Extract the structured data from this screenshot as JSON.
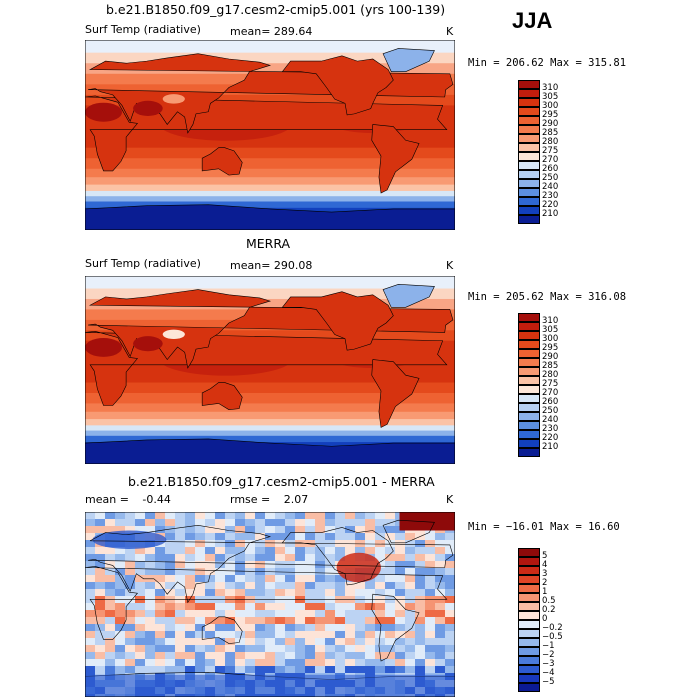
{
  "season": "JJA",
  "panels": [
    {
      "title": "b.e21.B1850.f09_g17.cesm2-cmip5.001 (yrs 100-139)",
      "left_label": "Surf Temp (radiative)",
      "stat_label": "mean=",
      "stat_value": "289.64",
      "units": "K",
      "minmax": "Min = 206.62 Max = 315.81"
    },
    {
      "title": "MERRA",
      "left_label": "Surf Temp (radiative)",
      "stat_label": "mean=",
      "stat_value": "290.08",
      "units": "K",
      "minmax": "Min = 205.62 Max = 316.08"
    },
    {
      "title": "b.e21.B1850.f09_g17.cesm2-cmip5.001 - MERRA",
      "left_label": "mean =",
      "left_value": "-0.44",
      "stat_label": "rmse =",
      "stat_value": "2.07",
      "units": "K",
      "minmax": "Min = −16.01 Max = 16.60"
    }
  ],
  "chart_data": [
    {
      "type": "heatmap",
      "title": "b.e21.B1850.f09_g17.cesm2-cmip5.001 (yrs 100-139)",
      "variable": "Surf Temp (radiative)",
      "units": "K",
      "mean": 289.64,
      "min": 206.62,
      "max": 315.81,
      "colorbar_levels": [
        "310",
        "305",
        "300",
        "295",
        "290",
        "285",
        "280",
        "275",
        "270",
        "260",
        "250",
        "240",
        "230",
        "220",
        "210"
      ],
      "colorbar_colors": [
        "#a50f0b",
        "#c21d0d",
        "#d6330f",
        "#e44a1c",
        "#ee6232",
        "#f47b4d",
        "#f89a73",
        "#fbc3a6",
        "#fde7d8",
        "#d7e7f7",
        "#b6d0f2",
        "#8cb2ea",
        "#5c8fe0",
        "#2f68d4",
        "#1240bd",
        "#0a1d93"
      ]
    },
    {
      "type": "heatmap",
      "title": "MERRA",
      "variable": "Surf Temp (radiative)",
      "units": "K",
      "mean": 290.08,
      "min": 205.62,
      "max": 316.08,
      "colorbar_levels": [
        "310",
        "305",
        "300",
        "295",
        "290",
        "285",
        "280",
        "275",
        "270",
        "260",
        "250",
        "240",
        "230",
        "220",
        "210"
      ],
      "colorbar_colors": [
        "#a50f0b",
        "#c21d0d",
        "#d6330f",
        "#e44a1c",
        "#ee6232",
        "#f47b4d",
        "#f89a73",
        "#fbc3a6",
        "#fde7d8",
        "#d7e7f7",
        "#b6d0f2",
        "#8cb2ea",
        "#5c8fe0",
        "#2f68d4",
        "#1240bd",
        "#0a1d93"
      ]
    },
    {
      "type": "heatmap",
      "title": "b.e21.B1850.f09_g17.cesm2-cmip5.001 - MERRA",
      "units": "K",
      "mean": -0.44,
      "rmse": 2.07,
      "min": -16.01,
      "max": 16.6,
      "colorbar_levels": [
        "5",
        "4",
        "3",
        "2",
        "1",
        "0.5",
        "0.2",
        "0",
        "−0.2",
        "−0.5",
        "−1",
        "−2",
        "−3",
        "−4",
        "−5"
      ],
      "colorbar_colors": [
        "#8e0a0a",
        "#b0160f",
        "#cc2a16",
        "#e04426",
        "#ee6a45",
        "#f59473",
        "#f9bda5",
        "#fde4d8",
        "#e1ecf9",
        "#bcd3f3",
        "#96b9ec",
        "#6f9be4",
        "#4a7bdb",
        "#2d5bd0",
        "#1838bd",
        "#0b1a94"
      ]
    }
  ],
  "colors": {
    "ocean_cold": "#0b2fa8",
    "ocean_warm": "#e8541f",
    "land_line": "#000000"
  }
}
